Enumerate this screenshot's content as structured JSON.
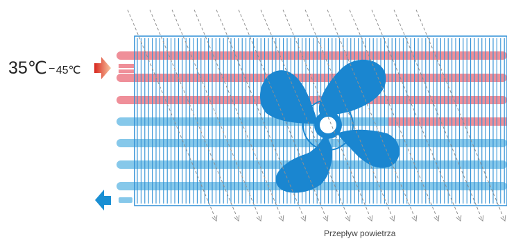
{
  "labels": {
    "inlet_temp_high": "35℃",
    "temp_range_separator": "–",
    "inlet_temp_low": "45℃",
    "airflow": "Przepływ powietrza"
  },
  "colors": {
    "hot_tube": "#ef8f99",
    "cold_tube": "#86c8ea",
    "fin": "#2e8fd4",
    "frame": "#2f8fd6",
    "fan": "#1a86d0",
    "inlet_arrow_dark": "#d8261e",
    "inlet_arrow_light": "#f8c6a0",
    "outlet_arrow": "#1a8fd3",
    "airflow_arrow": "#8f8f8f"
  },
  "icons": {
    "inlet": "inlet-arrow-icon",
    "outlet": "outlet-arrow-icon",
    "fan": "fan-icon",
    "airflow": "airflow-arrow-icon"
  }
}
